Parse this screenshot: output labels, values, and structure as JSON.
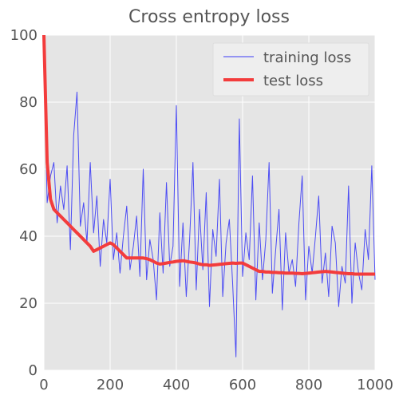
{
  "chart_data": {
    "type": "line",
    "title": "Cross entropy loss",
    "xlabel": "",
    "ylabel": "",
    "xlim": [
      0,
      1000
    ],
    "ylim": [
      0,
      100
    ],
    "xticks": [
      "0",
      "200",
      "400",
      "600",
      "800",
      "1000"
    ],
    "yticks": [
      "0",
      "20",
      "40",
      "60",
      "80",
      "100"
    ],
    "grid": true,
    "legend_position": "top-right",
    "series": [
      {
        "name": "training loss",
        "color": "#3b3bf5",
        "x": [
          0,
          10,
          20,
          30,
          40,
          50,
          60,
          70,
          80,
          90,
          100,
          110,
          120,
          130,
          140,
          150,
          160,
          170,
          180,
          190,
          200,
          210,
          220,
          230,
          240,
          250,
          260,
          270,
          280,
          290,
          300,
          310,
          320,
          330,
          340,
          350,
          360,
          370,
          380,
          390,
          400,
          410,
          420,
          430,
          440,
          450,
          460,
          470,
          480,
          490,
          500,
          510,
          520,
          530,
          540,
          550,
          560,
          570,
          580,
          590,
          600,
          610,
          620,
          630,
          640,
          650,
          660,
          670,
          680,
          690,
          700,
          710,
          720,
          730,
          740,
          750,
          760,
          770,
          780,
          790,
          800,
          810,
          820,
          830,
          840,
          850,
          860,
          870,
          880,
          890,
          900,
          910,
          920,
          930,
          940,
          950,
          960,
          970,
          980,
          990,
          1000
        ],
        "y": [
          95,
          50,
          58,
          62,
          44,
          55,
          48,
          61,
          36,
          70,
          83,
          43,
          50,
          38,
          62,
          41,
          52,
          31,
          45,
          38,
          57,
          33,
          41,
          29,
          40,
          49,
          30,
          37,
          46,
          28,
          60,
          27,
          39,
          33,
          21,
          47,
          29,
          56,
          31,
          37,
          79,
          25,
          44,
          22,
          39,
          62,
          24,
          48,
          30,
          53,
          19,
          42,
          34,
          57,
          22,
          38,
          45,
          26,
          4,
          75,
          28,
          41,
          33,
          58,
          21,
          44,
          27,
          39,
          62,
          23,
          36,
          48,
          18,
          41,
          29,
          33,
          25,
          44,
          58,
          21,
          37,
          29,
          40,
          52,
          26,
          35,
          22,
          43,
          38,
          19,
          31,
          26,
          55,
          20,
          38,
          29,
          24,
          42,
          33,
          61,
          27
        ]
      },
      {
        "name": "test loss",
        "color": "#f33c3c",
        "x": [
          0,
          10,
          20,
          30,
          40,
          50,
          60,
          70,
          80,
          90,
          100,
          110,
          120,
          130,
          140,
          150,
          160,
          170,
          180,
          190,
          200,
          210,
          220,
          230,
          240,
          250,
          260,
          270,
          280,
          290,
          300,
          310,
          320,
          330,
          340,
          350,
          360,
          370,
          380,
          390,
          400,
          410,
          420,
          430,
          440,
          450,
          460,
          470,
          480,
          490,
          500,
          510,
          520,
          530,
          540,
          550,
          560,
          570,
          580,
          590,
          600,
          610,
          620,
          630,
          640,
          650,
          660,
          670,
          680,
          690,
          700,
          710,
          720,
          730,
          740,
          750,
          760,
          770,
          780,
          790,
          800,
          810,
          820,
          830,
          840,
          850,
          860,
          870,
          880,
          890,
          900,
          910,
          920,
          930,
          940,
          950,
          960,
          970,
          980,
          990,
          1000
        ],
        "y": [
          100,
          62,
          51,
          48,
          47,
          46,
          45,
          44,
          43,
          42,
          41,
          40,
          39,
          38,
          37,
          35.5,
          36,
          36.5,
          37,
          37.5,
          38,
          37.5,
          36.5,
          35.5,
          34.5,
          33.5,
          33.5,
          33.5,
          33.5,
          33.5,
          33.5,
          33.3,
          33,
          32.5,
          32,
          31.7,
          31.8,
          32,
          32.2,
          32.3,
          32.5,
          32.6,
          32.7,
          32.5,
          32.3,
          32.2,
          32,
          31.7,
          31.5,
          31.5,
          31.3,
          31.4,
          31.5,
          31.6,
          31.7,
          31.8,
          31.9,
          32,
          31.9,
          32,
          32,
          31.5,
          31,
          30.5,
          30,
          29.5,
          29.5,
          29.3,
          29.3,
          29.2,
          29.2,
          29.1,
          29.1,
          29,
          29,
          29,
          28.9,
          28.9,
          28.8,
          28.9,
          29,
          29.1,
          29.2,
          29.3,
          29.4,
          29.5,
          29.4,
          29.3,
          29.2,
          29.1,
          29,
          28.9,
          28.8,
          28.8,
          28.7,
          28.7,
          28.7,
          28.7,
          28.7,
          28.7,
          28.7
        ]
      }
    ]
  }
}
